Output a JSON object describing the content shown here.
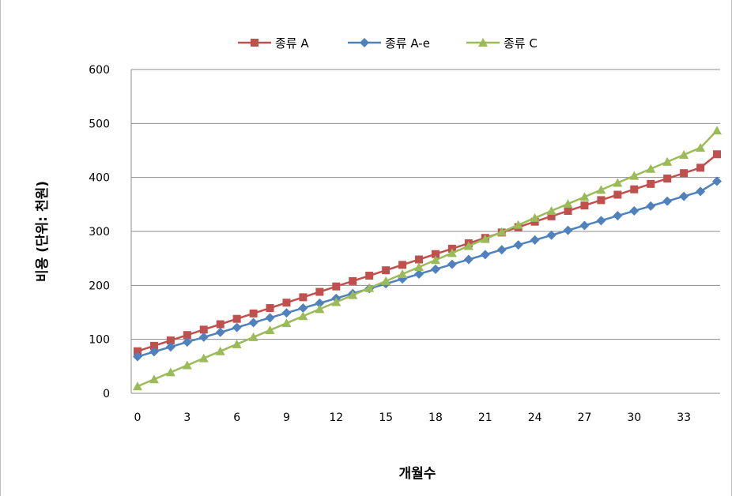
{
  "chart_data": {
    "type": "line",
    "title": "",
    "xlabel": "개월수",
    "ylabel": "비용 (단위: 천원)",
    "xlim": [
      0,
      35
    ],
    "ylim": [
      0,
      600
    ],
    "x_ticks": [
      "0",
      "3",
      "6",
      "9",
      "12",
      "15",
      "18",
      "21",
      "24",
      "27",
      "30",
      "33"
    ],
    "y_ticks": [
      "0",
      "100",
      "200",
      "300",
      "400",
      "500",
      "600"
    ],
    "grid": "horizontal",
    "legend_position": "top",
    "x": [
      0,
      1,
      2,
      3,
      4,
      5,
      6,
      7,
      8,
      9,
      10,
      11,
      12,
      13,
      14,
      15,
      16,
      17,
      18,
      19,
      20,
      21,
      22,
      23,
      24,
      25,
      26,
      27,
      28,
      29,
      30,
      31,
      32,
      33,
      34,
      35
    ],
    "series": [
      {
        "name": "종류 A",
        "color": "#c0504d",
        "marker": "square",
        "values": [
          78,
          88,
          98,
          108,
          118,
          128,
          138,
          148,
          158,
          168,
          178,
          188,
          198,
          208,
          218,
          228,
          238,
          248,
          258,
          268,
          278,
          288,
          298,
          308,
          318,
          328,
          338,
          348,
          358,
          368,
          378,
          388,
          398,
          408,
          418,
          443
        ]
      },
      {
        "name": "종류 A-e",
        "color": "#4f81bd",
        "marker": "diamond",
        "values": [
          68,
          77,
          86,
          95,
          104,
          113,
          122,
          131,
          140,
          149,
          158,
          167,
          176,
          185,
          194,
          203,
          212,
          221,
          230,
          239,
          248,
          257,
          266,
          275,
          284,
          293,
          302,
          311,
          320,
          329,
          338,
          347,
          356,
          365,
          374,
          393
        ]
      },
      {
        "name": "종류 C",
        "color": "#9bbb59",
        "marker": "triangle",
        "values": [
          13,
          26,
          39,
          52,
          65,
          78,
          91,
          104,
          117,
          130,
          143,
          156,
          169,
          182,
          195,
          208,
          221,
          234,
          247,
          260,
          273,
          286,
          299,
          312,
          325,
          338,
          351,
          364,
          377,
          390,
          403,
          416,
          429,
          442,
          455,
          487
        ]
      }
    ]
  }
}
